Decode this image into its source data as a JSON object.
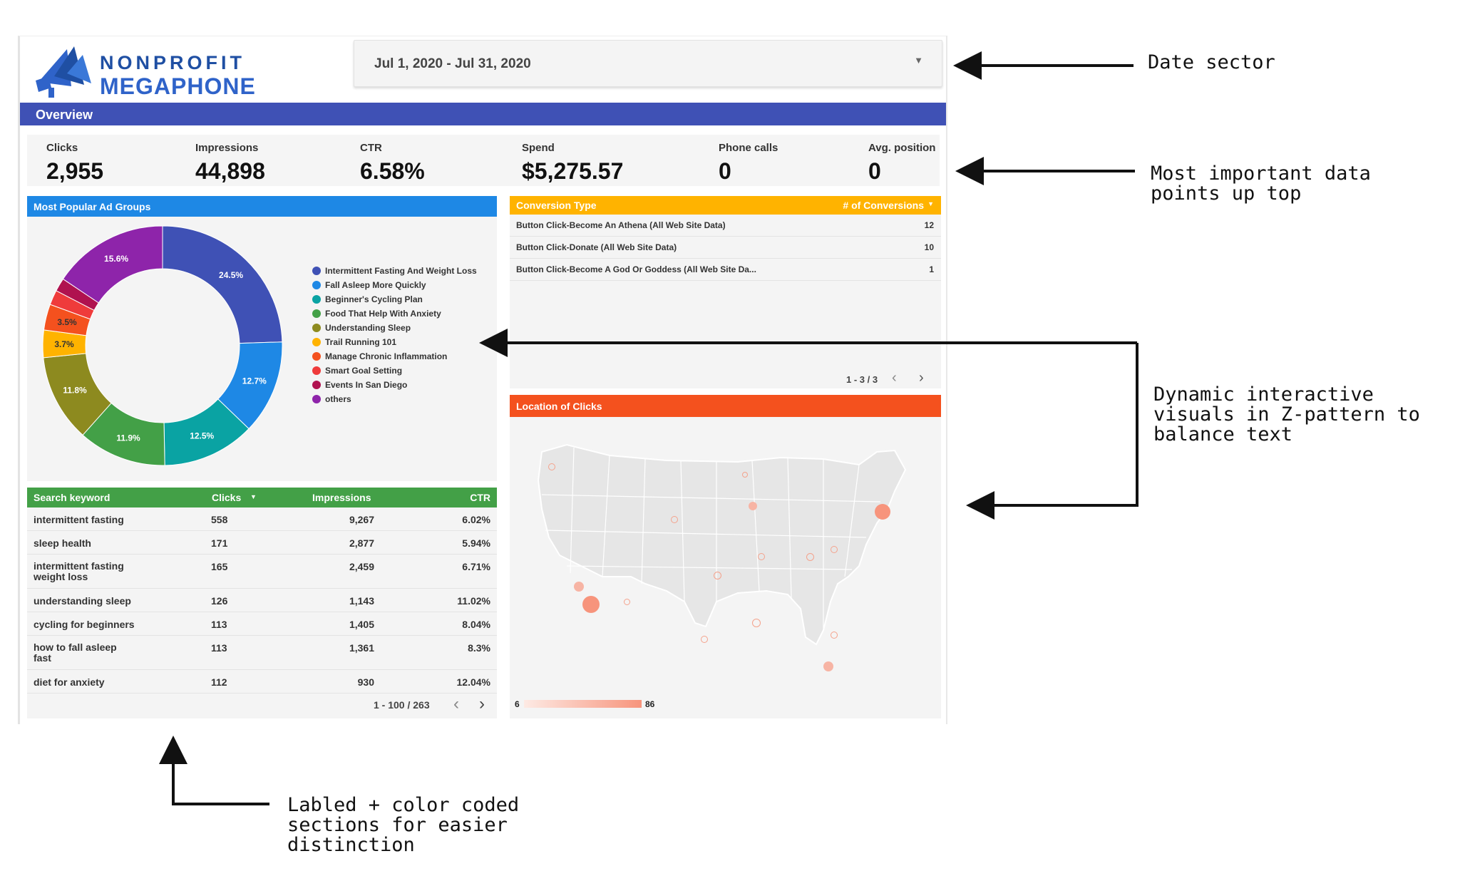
{
  "logo": {
    "line1": "NONPROFIT",
    "line2": "MEGAPHONE"
  },
  "date_selector": {
    "value": "Jul 1, 2020 - Jul 31, 2020"
  },
  "overview": {
    "title": "Overview"
  },
  "kpis": [
    {
      "label": "Clicks",
      "value": "2,955"
    },
    {
      "label": "Impressions",
      "value": "44,898"
    },
    {
      "label": "CTR",
      "value": "6.58%"
    },
    {
      "label": "Spend",
      "value": "$5,275.57"
    },
    {
      "label": "Phone calls",
      "value": "0"
    },
    {
      "label": "Avg. position",
      "value": "0"
    }
  ],
  "ad_groups": {
    "title": "Most Popular Ad Groups",
    "legend": [
      "Intermittent Fasting And Weight Loss",
      "Fall Asleep More Quickly",
      "Beginner's Cycling Plan",
      "Food That Help With Anxiety",
      "Understanding Sleep",
      "Trail Running 101",
      "Manage Chronic Inflammation",
      "Smart Goal Setting",
      "Events In San Diego",
      "others"
    ]
  },
  "chart_data": {
    "type": "pie",
    "title": "Most Popular Ad Groups",
    "categories": [
      "Intermittent Fasting And Weight Loss",
      "Fall Asleep More Quickly",
      "Beginner's Cycling Plan",
      "Food That Help With Anxiety",
      "Understanding Sleep",
      "Trail Running 101",
      "Manage Chronic Inflammation",
      "Smart Goal Setting",
      "Events In San Diego",
      "others"
    ],
    "values": [
      24.5,
      12.7,
      12.5,
      11.9,
      11.8,
      3.7,
      3.5,
      2.0,
      1.8,
      15.6
    ],
    "labels": [
      "24.5%",
      "12.7%",
      "12.5%",
      "11.9%",
      "11.8%",
      "3.7%",
      "3.5%",
      "",
      "",
      "15.6%"
    ],
    "colors": [
      "#3f51b5",
      "#1e88e5",
      "#0aa3a3",
      "#43a047",
      "#8d8a1f",
      "#ffb300",
      "#f4511e",
      "#ef3b3b",
      "#b0124f",
      "#8e24aa"
    ],
    "donut": true,
    "legend": "right"
  },
  "conversions": {
    "header_type": "Conversion Type",
    "header_count": "# of Conversions",
    "rows": [
      {
        "type": "Button Click-Become An Athena (All Web Site Data)",
        "count": "12"
      },
      {
        "type": "Button Click-Donate (All Web Site Data)",
        "count": "10"
      },
      {
        "type": "Button Click-Become A God Or Goddess (All Web Site Da...",
        "count": "1"
      }
    ],
    "pager": "1 - 3 / 3"
  },
  "location": {
    "title": "Location of Clicks",
    "scale_min": "6",
    "scale_max": "86"
  },
  "keywords": {
    "headers": {
      "keyword": "Search keyword",
      "clicks": "Clicks",
      "impressions": "Impressions",
      "ctr": "CTR"
    },
    "rows": [
      {
        "keyword": "intermittent fasting",
        "clicks": "558",
        "impressions": "9,267",
        "ctr": "6.02%"
      },
      {
        "keyword": "sleep health",
        "clicks": "171",
        "impressions": "2,877",
        "ctr": "5.94%"
      },
      {
        "keyword": "intermittent fasting weight loss",
        "clicks": "165",
        "impressions": "2,459",
        "ctr": "6.71%"
      },
      {
        "keyword": "understanding sleep",
        "clicks": "126",
        "impressions": "1,143",
        "ctr": "11.02%"
      },
      {
        "keyword": "cycling for beginners",
        "clicks": "113",
        "impressions": "1,405",
        "ctr": "8.04%"
      },
      {
        "keyword": "how to fall asleep fast",
        "clicks": "113",
        "impressions": "1,361",
        "ctr": "8.3%"
      },
      {
        "keyword": "diet for anxiety",
        "clicks": "112",
        "impressions": "930",
        "ctr": "12.04%"
      }
    ],
    "pager": "1 - 100 / 263"
  },
  "annotations": {
    "date": "Date sector",
    "data_line1": "Most important data",
    "data_line2": "points up top",
    "dyn_line1": "Dynamic interactive",
    "dyn_line2": "visuals in Z-pattern to",
    "dyn_line3": "balance text",
    "lab_line1": "Labled + color coded",
    "lab_line2": "sections for easier",
    "lab_line3": "distinction"
  },
  "colors": {
    "overview": "#3f51b5",
    "ad_groups": "#1e88e5",
    "conversions": "#ffb300",
    "location": "#f4511e",
    "keywords": "#43a047"
  }
}
